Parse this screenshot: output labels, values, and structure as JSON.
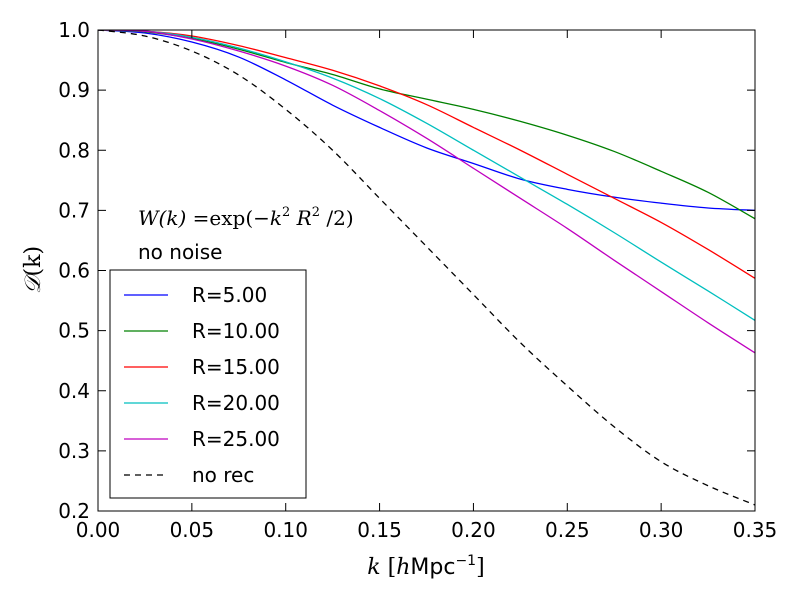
{
  "chart_data": {
    "type": "line",
    "xlabel": "k [hMpc⁻¹]",
    "ylabel": "𝒟(k)",
    "xlabel_parts": {
      "var": "k",
      "bracket_open": "[",
      "unit_h": "h",
      "unit_rest": "Mpc",
      "exp": "−1",
      "bracket_close": "]"
    },
    "ylabel_parts": {
      "script": "𝒟",
      "args": "(k)"
    },
    "xlim": [
      0.0,
      0.35
    ],
    "ylim": [
      0.2,
      1.0
    ],
    "xticks": [
      "0.00",
      "0.05",
      "0.10",
      "0.15",
      "0.20",
      "0.25",
      "0.30",
      "0.35"
    ],
    "xtick_values": [
      0.0,
      0.05,
      0.1,
      0.15,
      0.2,
      0.25,
      0.3,
      0.35
    ],
    "yticks": [
      "0.2",
      "0.3",
      "0.4",
      "0.5",
      "0.6",
      "0.7",
      "0.8",
      "0.9",
      "1.0"
    ],
    "ytick_values": [
      0.2,
      0.3,
      0.4,
      0.5,
      0.6,
      0.7,
      0.8,
      0.9,
      1.0
    ],
    "grid": false,
    "legend_position": "lower-left",
    "annotations": [
      {
        "kind": "formula",
        "text": "W(k) = exp(−k² R² /2)",
        "parts": {
          "lhs": "W(k)",
          "eq": "=",
          "fn": "exp",
          "open": "(−",
          "k": "k",
          "kexp": "2",
          "R": "R",
          "Rexp": "2",
          "close": "/2)"
        }
      },
      {
        "kind": "text",
        "text": "no noise"
      }
    ],
    "x": [
      0.0,
      0.025,
      0.05,
      0.075,
      0.1,
      0.125,
      0.15,
      0.175,
      0.2,
      0.225,
      0.25,
      0.275,
      0.3,
      0.325,
      0.35
    ],
    "series": [
      {
        "name": "R=5.00",
        "color": "#0000ff",
        "dash": "solid",
        "values": [
          1.0,
          0.995,
          0.98,
          0.955,
          0.917,
          0.875,
          0.838,
          0.804,
          0.778,
          0.752,
          0.735,
          0.722,
          0.712,
          0.704,
          0.7
        ]
      },
      {
        "name": "R=10.00",
        "color": "#008000",
        "dash": "solid",
        "values": [
          1.0,
          0.997,
          0.986,
          0.968,
          0.946,
          0.926,
          0.902,
          0.885,
          0.868,
          0.848,
          0.825,
          0.798,
          0.765,
          0.73,
          0.686
        ]
      },
      {
        "name": "R=15.00",
        "color": "#ff0000",
        "dash": "solid",
        "values": [
          1.0,
          0.998,
          0.99,
          0.974,
          0.954,
          0.933,
          0.907,
          0.876,
          0.838,
          0.8,
          0.76,
          0.72,
          0.68,
          0.635,
          0.587
        ]
      },
      {
        "name": "R=20.00",
        "color": "#00bfbf",
        "dash": "solid",
        "values": [
          1.0,
          0.998,
          0.988,
          0.97,
          0.947,
          0.92,
          0.886,
          0.845,
          0.8,
          0.755,
          0.71,
          0.663,
          0.614,
          0.566,
          0.517
        ]
      },
      {
        "name": "R=25.00",
        "color": "#bf00bf",
        "dash": "solid",
        "values": [
          1.0,
          0.998,
          0.985,
          0.965,
          0.94,
          0.908,
          0.866,
          0.82,
          0.77,
          0.72,
          0.67,
          0.617,
          0.565,
          0.513,
          0.463
        ]
      },
      {
        "name": "no rec",
        "color": "#000000",
        "dash": "dashed",
        "values": [
          1.0,
          0.99,
          0.965,
          0.925,
          0.868,
          0.8,
          0.72,
          0.64,
          0.56,
          0.48,
          0.408,
          0.34,
          0.282,
          0.242,
          0.21
        ]
      }
    ]
  }
}
